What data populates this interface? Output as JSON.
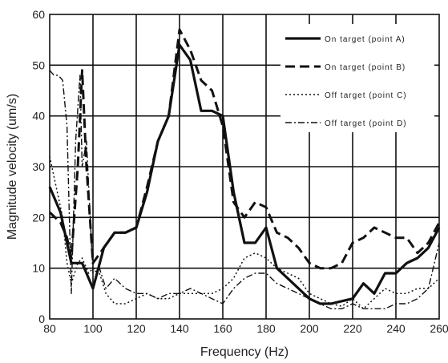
{
  "chart_data": {
    "type": "line",
    "title": "",
    "xlabel": "Frequency (Hz)",
    "ylabel": "Magnitude velocity (um/s)",
    "xlim": [
      80,
      260
    ],
    "ylim": [
      0,
      60
    ],
    "xticks": [
      "80",
      "100",
      "120",
      "140",
      "160",
      "180",
      "200",
      "220",
      "240",
      "260"
    ],
    "yticks": [
      "0",
      "10",
      "20",
      "30",
      "40",
      "50",
      "60"
    ],
    "grid": true,
    "legend_position": "top-right",
    "series": [
      {
        "name": "On target (point A)",
        "style": "solid-thick",
        "color": "#111111",
        "x": [
          80,
          85,
          88,
          90,
          95,
          100,
          105,
          110,
          115,
          120,
          125,
          130,
          135,
          140,
          145,
          150,
          155,
          160,
          165,
          170,
          175,
          180,
          185,
          190,
          195,
          200,
          205,
          210,
          215,
          220,
          225,
          230,
          235,
          240,
          245,
          250,
          255,
          260
        ],
        "y": [
          26,
          21,
          15,
          11,
          11,
          6,
          14,
          17,
          17,
          18,
          25,
          35,
          40,
          54,
          51,
          41,
          41,
          40,
          25,
          15,
          15,
          18,
          10,
          8,
          6,
          4,
          3,
          3,
          3.5,
          4,
          7,
          5,
          9,
          9,
          11,
          12,
          14,
          18
        ]
      },
      {
        "name": "On target (point B)",
        "style": "dashed",
        "color": "#111111",
        "x": [
          80,
          85,
          88,
          90,
          93,
          95,
          97,
          100,
          105,
          110,
          115,
          120,
          125,
          130,
          135,
          140,
          145,
          150,
          155,
          160,
          165,
          170,
          175,
          180,
          185,
          190,
          195,
          200,
          205,
          210,
          215,
          220,
          225,
          230,
          235,
          240,
          245,
          250,
          255,
          260
        ],
        "y": [
          21,
          19,
          16,
          12,
          30,
          49,
          30,
          11,
          14,
          17,
          17,
          18,
          26,
          35,
          40,
          57,
          53,
          47,
          45,
          38,
          23,
          20,
          23,
          22,
          17,
          16,
          14,
          11,
          10,
          10,
          11,
          15,
          16,
          18,
          17,
          16,
          16,
          13,
          15,
          19
        ]
      },
      {
        "name": "Off target (point C)",
        "style": "dotted",
        "color": "#111111",
        "x": [
          80,
          83,
          86,
          88,
          90,
          93,
          95,
          98,
          100,
          103,
          106,
          110,
          115,
          120,
          125,
          130,
          135,
          140,
          145,
          150,
          155,
          160,
          165,
          170,
          175,
          180,
          185,
          190,
          195,
          200,
          205,
          210,
          215,
          220,
          225,
          230,
          235,
          240,
          245,
          250,
          255,
          260
        ],
        "y": [
          32,
          26,
          20,
          11,
          7,
          11,
          12,
          9,
          10,
          9,
          5,
          3,
          3,
          4,
          5,
          4,
          4,
          5,
          5,
          5,
          5,
          6,
          8,
          12,
          13,
          12,
          10,
          9,
          8,
          5,
          4,
          3,
          2.5,
          4,
          2,
          4,
          6,
          5,
          5,
          6,
          6,
          8
        ]
      },
      {
        "name": "Off target (point D)",
        "style": "dash-dot",
        "color": "#111111",
        "x": [
          80,
          82,
          84,
          86,
          88,
          90,
          92,
          94,
          95,
          97,
          100,
          103,
          106,
          110,
          115,
          120,
          125,
          130,
          135,
          140,
          145,
          150,
          155,
          160,
          165,
          170,
          175,
          180,
          185,
          190,
          195,
          200,
          205,
          210,
          215,
          220,
          225,
          230,
          235,
          240,
          245,
          250,
          255,
          260
        ],
        "y": [
          49,
          48,
          48,
          47,
          38,
          5,
          35,
          48,
          30,
          35,
          9,
          10,
          6,
          8,
          6,
          5,
          5,
          4,
          5,
          5,
          6,
          5,
          4,
          3,
          6,
          8,
          9,
          9,
          7,
          6,
          5,
          4,
          3,
          2,
          2,
          3,
          2,
          2,
          2,
          3,
          3,
          4,
          6,
          15
        ]
      }
    ]
  },
  "legend_labels": [
    "On target (point A)",
    "On target (point B)",
    "Off target (point C)",
    "Off target (point D)"
  ]
}
